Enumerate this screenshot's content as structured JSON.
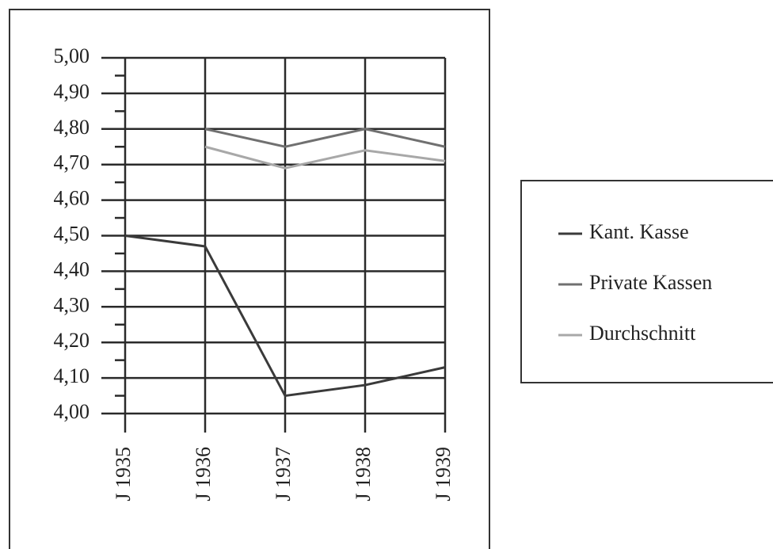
{
  "chart_data": {
    "type": "line",
    "categories": [
      "J 1935",
      "J 1936",
      "J 1937",
      "J 1938",
      "J 1939"
    ],
    "series": [
      {
        "name": "Kant. Kasse",
        "color": "#3a3a3a",
        "values": [
          4.5,
          4.47,
          4.05,
          4.08,
          4.13
        ]
      },
      {
        "name": "Private Kassen",
        "color": "#707070",
        "values": [
          null,
          4.8,
          4.75,
          4.8,
          4.75
        ]
      },
      {
        "name": "Durchschnitt",
        "color": "#a8a8a8",
        "values": [
          null,
          4.75,
          4.69,
          4.74,
          4.71
        ]
      }
    ],
    "ylim": [
      4,
      5
    ],
    "yticks": [
      {
        "value": 4,
        "label": "4,00"
      },
      {
        "value": 4.1,
        "label": "4,10"
      },
      {
        "value": 4.2,
        "label": "4,20"
      },
      {
        "value": 4.3,
        "label": "4,30"
      },
      {
        "value": 4.4,
        "label": "4,40"
      },
      {
        "value": 4.5,
        "label": "4,50"
      },
      {
        "value": 4.6,
        "label": "4,60"
      },
      {
        "value": 4.7,
        "label": "4,70"
      },
      {
        "value": 4.8,
        "label": "4,80"
      },
      {
        "value": 4.9,
        "label": "4,90"
      },
      {
        "value": 5,
        "label": "5,00"
      }
    ],
    "minor_yticks": [
      4.05,
      4.15,
      4.25,
      4.35,
      4.45,
      4.55,
      4.65,
      4.75,
      4.85,
      4.95
    ],
    "grid": true,
    "legend": "right"
  }
}
